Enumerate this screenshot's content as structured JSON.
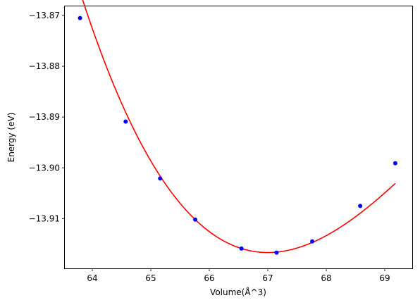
{
  "chart_data": {
    "type": "scatter",
    "title": "",
    "xlabel": "Volume(Å^3)",
    "ylabel": "Energy (eV)",
    "xlim": [
      63.53,
      69.47
    ],
    "ylim": [
      -13.9198,
      -13.8682
    ],
    "xticks": [
      64,
      65,
      66,
      67,
      68,
      69
    ],
    "xtick_labels": [
      "64",
      "65",
      "66",
      "67",
      "68",
      "69"
    ],
    "yticks": [
      -13.87,
      -13.88,
      -13.89,
      -13.9,
      -13.91
    ],
    "ytick_labels": [
      "−13.87",
      "−13.88",
      "−13.89",
      "−13.90",
      "−13.91"
    ],
    "grid": false,
    "series": [
      {
        "kind": "points",
        "color": "#0000ff",
        "marker": "circle",
        "x": [
          63.79,
          64.57,
          65.16,
          65.76,
          66.55,
          67.15,
          67.76,
          68.58,
          69.18
        ],
        "y": [
          -13.8705,
          -13.8909,
          -13.9021,
          -13.9102,
          -13.9159,
          -13.9167,
          -13.9145,
          -13.9075,
          -13.8991
        ]
      },
      {
        "kind": "fit_curve",
        "color": "#ff0000",
        "fit": "cubic",
        "coefficients_centered_at": 67.0,
        "coefficients": [
          -13.91668,
          0.0,
          0.003722,
          -0.000393
        ],
        "x_range": [
          63.79,
          69.18
        ]
      }
    ]
  }
}
